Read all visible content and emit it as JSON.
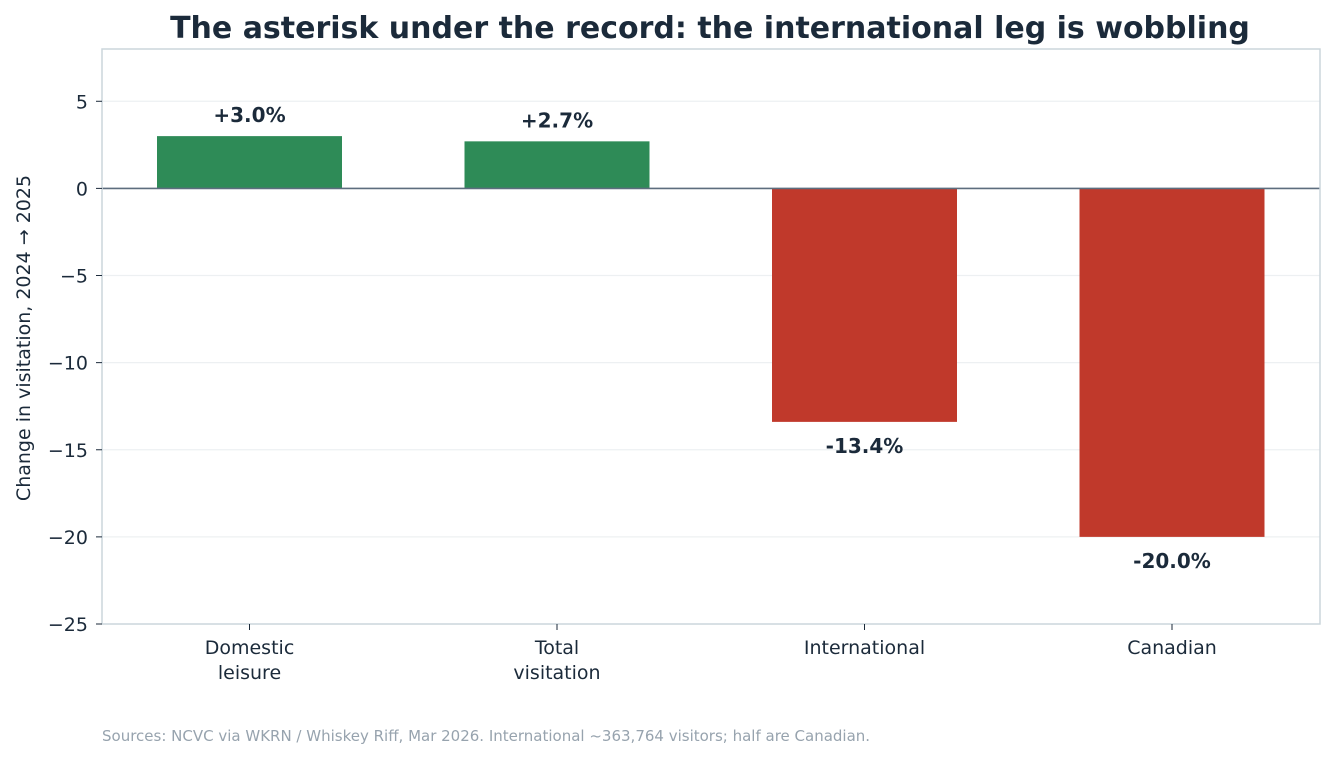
{
  "chart_data": {
    "type": "bar",
    "title": "The asterisk under the record: the international leg is wobbling",
    "ylabel": "Change in visitation, 2024 → 2025",
    "xlabel": "",
    "categories": [
      [
        "Domestic",
        "leisure"
      ],
      [
        "Total",
        "visitation"
      ],
      [
        "International"
      ],
      [
        "Canadian"
      ]
    ],
    "values": [
      3.0,
      2.7,
      -13.4,
      -20.0
    ],
    "data_labels": [
      "+3.0%",
      "+2.7%",
      "-13.4%",
      "-20.0%"
    ],
    "ylim": [
      -25,
      8
    ],
    "yticks": [
      5,
      0,
      -5,
      -10,
      -15,
      -20,
      -25
    ],
    "ytick_labels": [
      "5",
      "0",
      "−5",
      "−10",
      "−15",
      "−20",
      "−25"
    ],
    "grid": "horizontal",
    "legend": "none",
    "colors": {
      "positive": "#2e8b57",
      "negative": "#c0392b",
      "zero_line": "#5d6d7e",
      "grid": "#edf0f2",
      "frame": "#cbd5dc",
      "text": "#1b2a3a",
      "source": "#97a3ae"
    },
    "source": "Sources: NCVC via WKRN / Whiskey Riff, Mar 2026. International ~363,764 visitors; half are Canadian."
  }
}
